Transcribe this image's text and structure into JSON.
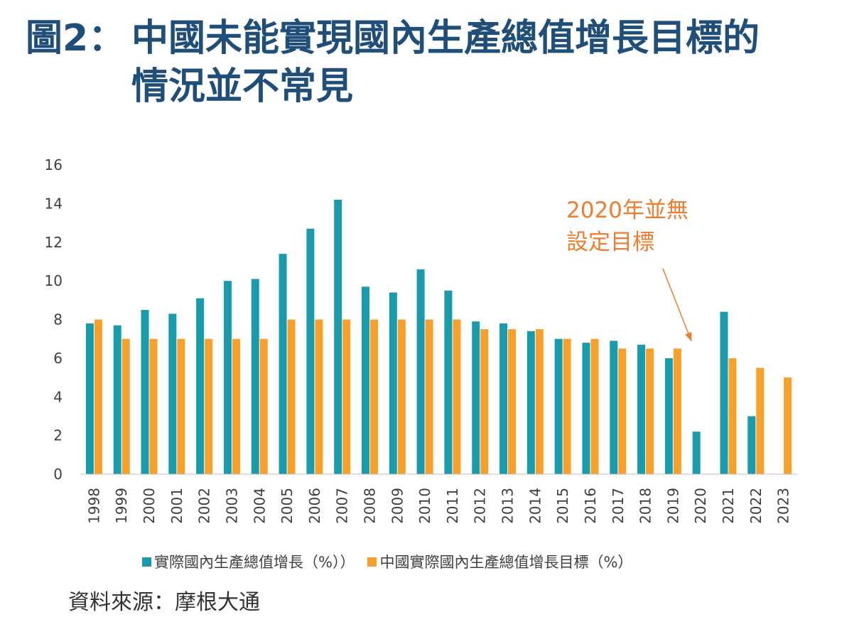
{
  "title": {
    "prefix": "圖2：",
    "line1": "中國未能實現國內生產總值增長目標的",
    "line2": "情況並不常見"
  },
  "source": "資料來源：摩根大通",
  "colors": {
    "title": "#1f4e79",
    "actual": "#1a9bab",
    "target": "#f7a02b",
    "annotation": "#ed7d31"
  },
  "chart_data": {
    "type": "bar",
    "categories": [
      "1998",
      "1999",
      "2000",
      "2001",
      "2002",
      "2003",
      "2004",
      "2005",
      "2006",
      "2007",
      "2008",
      "2009",
      "2010",
      "2011",
      "2012",
      "2013",
      "2014",
      "2015",
      "2016",
      "2017",
      "2018",
      "2019",
      "2020",
      "2021",
      "2022",
      "2023"
    ],
    "series": [
      {
        "name": "實際國內生產總值增長（%））",
        "color": "#1a9bab",
        "values": [
          7.8,
          7.7,
          8.5,
          8.3,
          9.1,
          10.0,
          10.1,
          11.4,
          12.7,
          14.2,
          9.7,
          9.4,
          10.6,
          9.5,
          7.9,
          7.8,
          7.4,
          7.0,
          6.8,
          6.9,
          6.7,
          6.0,
          2.2,
          8.4,
          3.0,
          null
        ]
      },
      {
        "name": "中國實際國內生產總值增長目標（%）",
        "color": "#f7a02b",
        "values": [
          8.0,
          7.0,
          7.0,
          7.0,
          7.0,
          7.0,
          7.0,
          8.0,
          8.0,
          8.0,
          8.0,
          8.0,
          8.0,
          8.0,
          7.5,
          7.5,
          7.5,
          7.0,
          7.0,
          6.5,
          6.5,
          6.5,
          null,
          6.0,
          5.5,
          5.0
        ]
      }
    ],
    "ylim": [
      0,
      16
    ],
    "yticks": [
      "0",
      "2",
      "4",
      "6",
      "8",
      "10",
      "12",
      "14",
      "16"
    ],
    "grid": false,
    "legend": "bottom",
    "annotation": {
      "lines": [
        "2020年並無",
        "設定目標"
      ],
      "target_category": "2020"
    }
  }
}
